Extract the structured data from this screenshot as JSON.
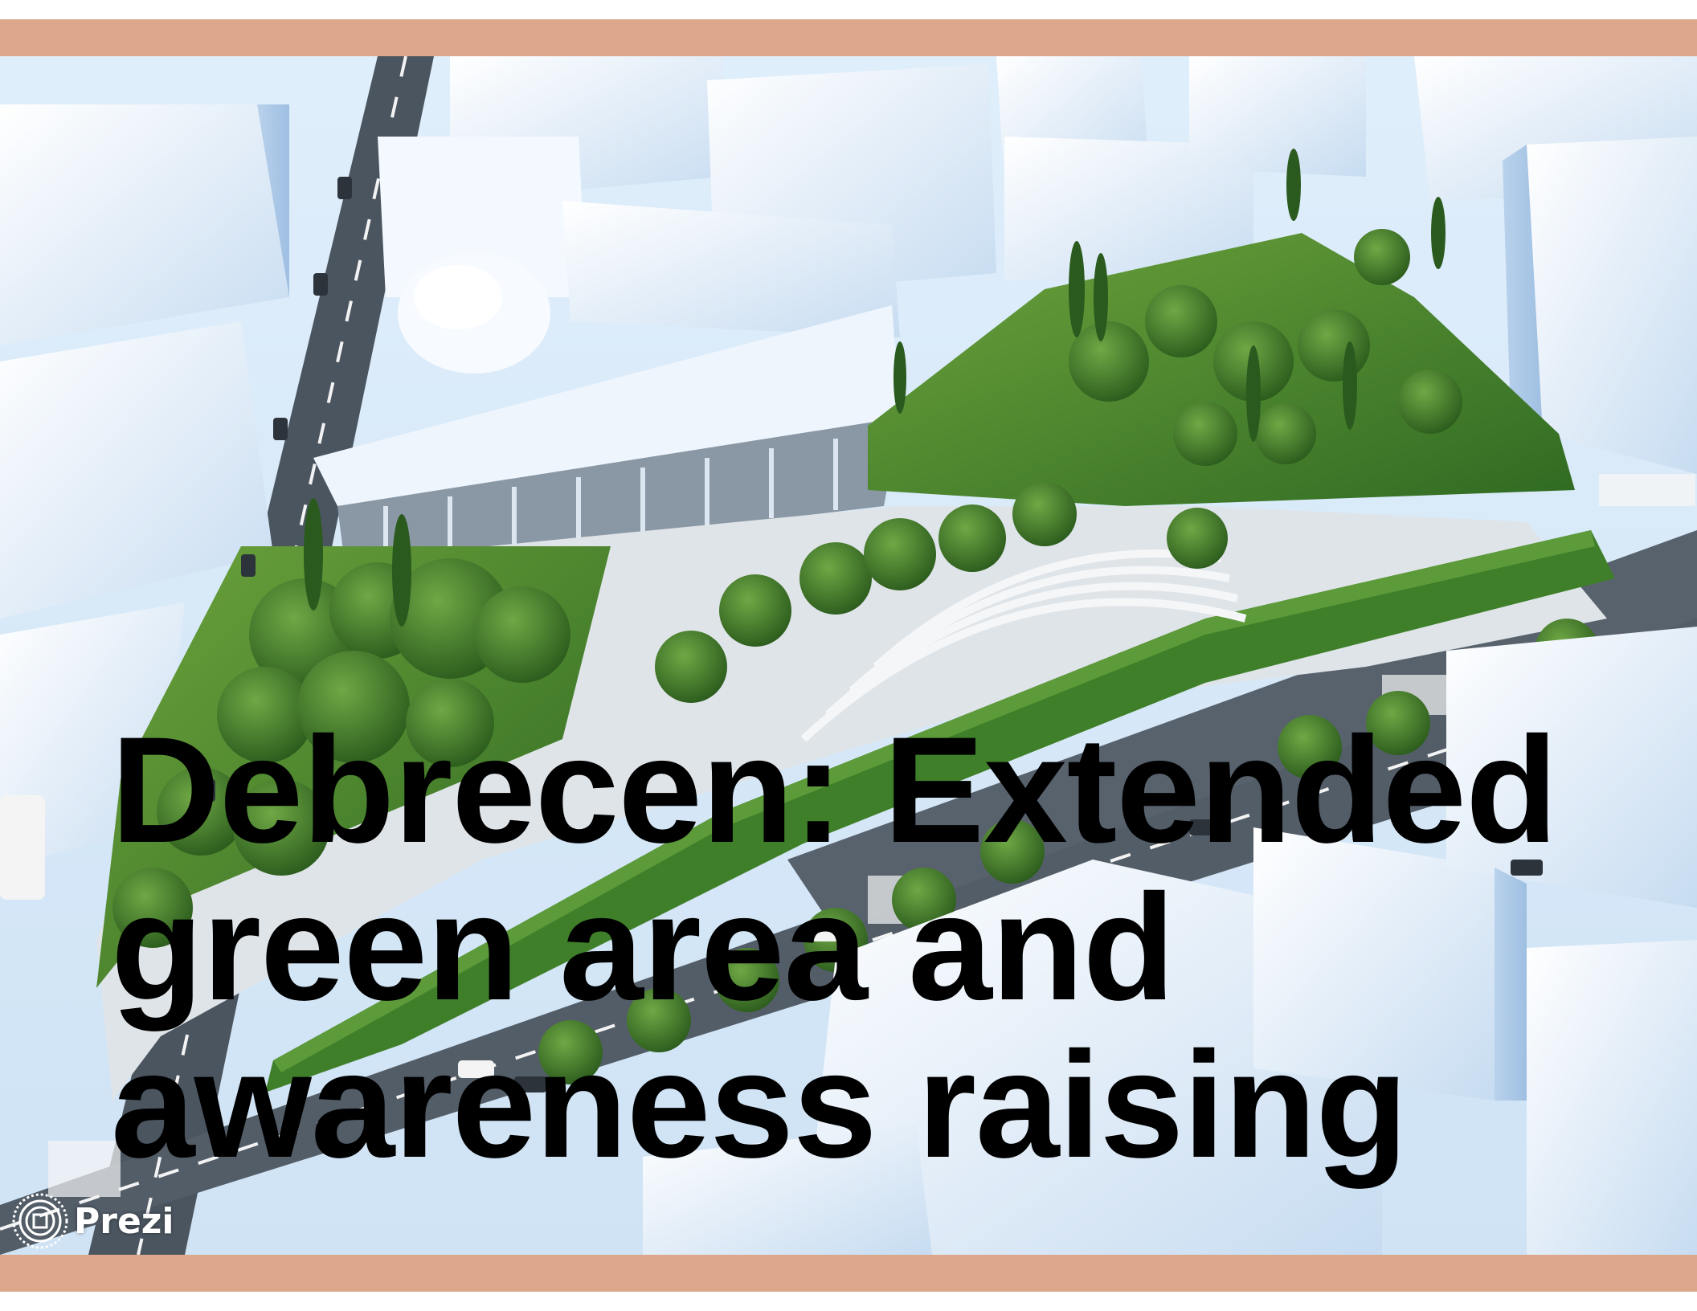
{
  "slide": {
    "title": "Debrecen: Extended\ngreen area and\nawareness raising",
    "logo_text": "Prezi"
  },
  "colors": {
    "band": "#dca78a",
    "title": "#000000",
    "building": "#e6f1fb",
    "road": "#4b5560",
    "greenery": "#3e7d2a"
  },
  "icons": [
    "prezi-logo-icon"
  ]
}
